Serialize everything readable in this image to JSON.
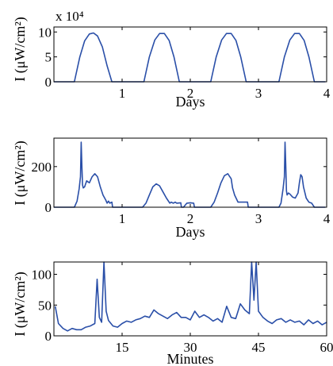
{
  "chart_data": [
    {
      "type": "line",
      "xlabel": "Days",
      "ylabel": "I (μW/cm²)",
      "xlim": [
        0,
        4
      ],
      "ylim": [
        0,
        11
      ],
      "xticks": [
        "1",
        "2",
        "3",
        "4"
      ],
      "yticks": [
        "0",
        "5",
        "10"
      ],
      "yscale_label": "x 10⁴",
      "grid": false,
      "series": [
        {
          "x": [
            0,
            0.3,
            0.38,
            0.45,
            0.52,
            0.58,
            0.64,
            0.71,
            0.78,
            0.85,
            1.32,
            1.4,
            1.48,
            1.55,
            1.62,
            1.69,
            1.76,
            1.84,
            2.3,
            2.38,
            2.46,
            2.53,
            2.6,
            2.67,
            2.74,
            2.82,
            3.3,
            3.38,
            3.46,
            3.53,
            3.6,
            3.67,
            3.74,
            3.82,
            3.98
          ],
          "y": [
            0,
            0,
            5.0,
            8.2,
            9.6,
            9.8,
            9.2,
            7.0,
            3.2,
            0,
            0,
            5.0,
            8.4,
            9.7,
            9.7,
            8.3,
            5.0,
            0,
            0,
            5.0,
            8.4,
            9.7,
            9.7,
            8.3,
            5.0,
            0,
            0,
            5.0,
            8.4,
            9.7,
            9.7,
            8.3,
            5.0,
            0,
            0
          ]
        }
      ]
    },
    {
      "type": "line",
      "xlabel": "Days",
      "ylabel": "I (μW/cm²)",
      "xlim": [
        0,
        4
      ],
      "ylim": [
        0,
        340
      ],
      "xticks": [
        "1",
        "2",
        "3",
        "4"
      ],
      "yticks": [
        "0",
        "200"
      ],
      "grid": false,
      "series": [
        {
          "x": [
            0,
            0.3,
            0.34,
            0.37,
            0.39,
            0.4,
            0.41,
            0.42,
            0.43,
            0.45,
            0.48,
            0.52,
            0.56,
            0.6,
            0.64,
            0.68,
            0.72,
            0.76,
            0.78,
            0.8,
            0.82,
            0.85,
            0.86,
            1.3,
            1.35,
            1.4,
            1.45,
            1.5,
            1.55,
            1.6,
            1.65,
            1.7,
            1.72,
            1.75,
            1.78,
            1.8,
            1.86,
            1.87,
            1.9,
            1.95,
            2.0,
            2.05,
            2.06,
            2.3,
            2.35,
            2.4,
            2.45,
            2.5,
            2.55,
            2.6,
            2.62,
            2.65,
            2.7,
            2.72,
            2.78,
            2.8,
            2.84,
            2.85,
            2.86,
            3.3,
            3.33,
            3.36,
            3.38,
            3.39,
            3.4,
            3.41,
            3.42,
            3.44,
            3.46,
            3.5,
            3.54,
            3.58,
            3.6,
            3.62,
            3.64,
            3.66,
            3.7,
            3.74,
            3.78,
            3.82,
            3.98
          ],
          "y": [
            0,
            0,
            30,
            90,
            150,
            320,
            200,
            110,
            95,
            100,
            130,
            120,
            150,
            165,
            150,
            100,
            60,
            35,
            20,
            30,
            20,
            25,
            0,
            0,
            20,
            60,
            100,
            115,
            105,
            75,
            45,
            20,
            25,
            20,
            25,
            20,
            22,
            0,
            0,
            20,
            22,
            20,
            0,
            0,
            25,
            70,
            120,
            155,
            165,
            140,
            95,
            60,
            25,
            25,
            25,
            25,
            25,
            0,
            0,
            0,
            20,
            90,
            150,
            320,
            210,
            80,
            60,
            70,
            65,
            50,
            45,
            70,
            120,
            160,
            150,
            100,
            45,
            25,
            20,
            0,
            0
          ]
        }
      ]
    },
    {
      "type": "line",
      "xlabel": "Minutes",
      "ylabel": "I (μW/cm²)",
      "xlim": [
        0,
        60
      ],
      "ylim": [
        0,
        120
      ],
      "xticks": [
        "15",
        "30",
        "45",
        "60"
      ],
      "yticks": [
        "0",
        "50",
        "100"
      ],
      "grid": false,
      "series": [
        {
          "x": [
            0.3,
            1,
            2,
            3,
            4,
            5,
            6,
            7,
            8,
            9,
            9.5,
            10,
            10.5,
            11,
            11.5,
            12,
            13,
            14,
            15,
            16,
            17,
            18,
            19,
            20,
            21,
            22,
            23,
            24,
            25,
            26,
            27,
            28,
            29,
            30,
            31,
            32,
            33,
            34,
            35,
            36,
            37,
            38,
            39,
            40,
            41,
            42,
            43,
            43.5,
            44,
            44.5,
            45,
            46,
            47,
            48,
            49,
            50,
            51,
            52,
            53,
            54,
            55,
            56,
            57,
            58,
            59,
            60
          ],
          "y": [
            48,
            20,
            12,
            8,
            12,
            10,
            10,
            14,
            16,
            20,
            92,
            30,
            22,
            120,
            40,
            25,
            16,
            14,
            20,
            24,
            22,
            26,
            28,
            32,
            30,
            42,
            36,
            32,
            28,
            34,
            38,
            30,
            30,
            26,
            40,
            30,
            34,
            30,
            24,
            28,
            22,
            48,
            30,
            28,
            52,
            42,
            36,
            120,
            58,
            120,
            40,
            30,
            24,
            20,
            26,
            28,
            22,
            26,
            22,
            24,
            18,
            26,
            20,
            24,
            18,
            22
          ]
        }
      ]
    }
  ]
}
